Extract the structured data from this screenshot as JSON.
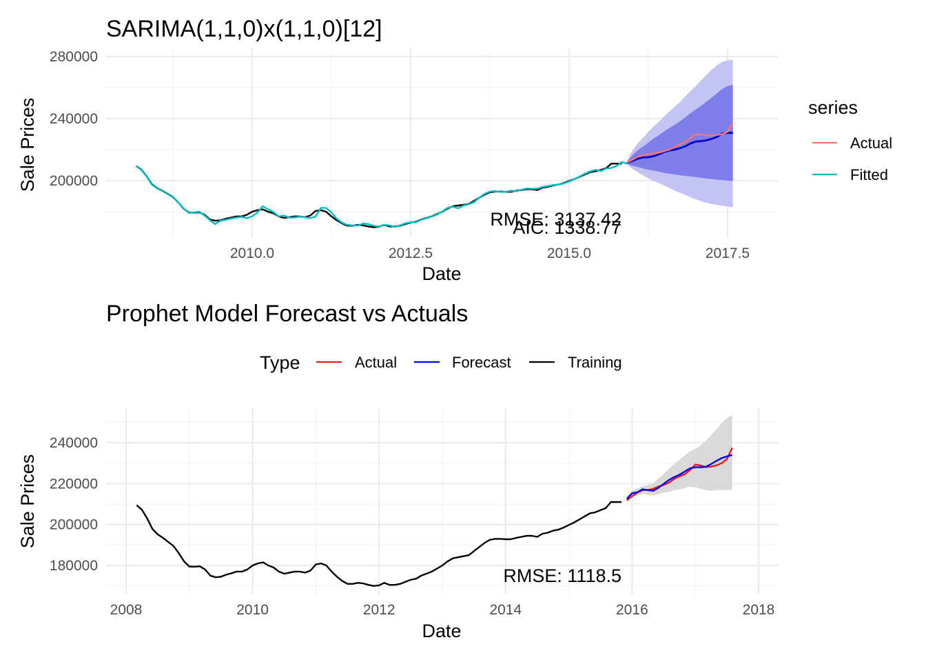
{
  "chart_data": [
    {
      "type": "line",
      "title": "SARIMA(1,1,0)x(1,1,0)[12]",
      "xlabel": "Date",
      "ylabel": "Sale Prices",
      "xlim": [
        2007.7,
        2018.3
      ],
      "ylim": [
        165500,
        282000
      ],
      "x_ticks": [
        2010.0,
        2012.5,
        2015.0,
        2017.5
      ],
      "x_tick_labels": [
        "2010.0",
        "2012.5",
        "2015.0",
        "2017.5"
      ],
      "y_ticks": [
        200000,
        240000,
        280000
      ],
      "y_tick_labels": [
        "200000",
        "240000",
        "280000"
      ],
      "grid": true,
      "legend": {
        "title": "series",
        "placement": "right",
        "entries": [
          {
            "label": "Actual",
            "color": "#F8766D"
          },
          {
            "label": "Fitted",
            "color": "#00BFC4"
          }
        ]
      },
      "annotations": [
        "RMSE: 3137.42",
        "AIC: 1338.77"
      ],
      "training_start": 2008.1667,
      "forecast_start": 2015.9167,
      "step": 0.08333,
      "series": [
        {
          "name": "Training",
          "color": "#000000",
          "values": [
            209500,
            207200,
            203000,
            197800,
            195200,
            193500,
            191500,
            189500,
            186000,
            182000,
            179500,
            179400,
            179600,
            178000,
            175000,
            174200,
            174500,
            175500,
            176200,
            177000,
            177000,
            178000,
            180000,
            181000,
            181500,
            180000,
            179000,
            177000,
            176000,
            176500,
            177000,
            177000,
            176500,
            177500,
            180500,
            181000,
            180000,
            177000,
            174500,
            172500,
            171000,
            171000,
            171500,
            171200,
            170500,
            170000,
            170300,
            171500,
            170500,
            170500,
            171000,
            172000,
            173000,
            173500,
            175000,
            176000,
            177000,
            178500,
            180000,
            182000,
            183500,
            184000,
            184500,
            185000,
            187000,
            189000,
            191000,
            192500,
            193000,
            193000,
            192800,
            192800,
            193500,
            194000,
            194500,
            194500,
            194000,
            195500,
            196000,
            197000,
            197500,
            198500,
            199800,
            201000,
            202500,
            204000,
            205500,
            206000,
            207000,
            208000,
            211000,
            211000,
            211000
          ]
        },
        {
          "name": "Fitted",
          "color": "#00BFC4",
          "values": [
            209500,
            207000,
            202800,
            197500,
            195000,
            193300,
            191300,
            189300,
            186000,
            182200,
            179200,
            179600,
            180000,
            177500,
            174500,
            172000,
            174200,
            174800,
            175600,
            176200,
            176600,
            175800,
            177000,
            179500,
            183500,
            181500,
            179800,
            177000,
            177500,
            176200,
            176200,
            176800,
            176400,
            175800,
            176800,
            182500,
            182400,
            179500,
            175500,
            173000,
            171500,
            171200,
            171000,
            172400,
            172000,
            171000,
            170500,
            171500,
            171200,
            170200,
            171200,
            172500,
            173200,
            173200,
            174800,
            175800,
            176800,
            178200,
            180200,
            182500,
            183200,
            182200,
            184000,
            184800,
            186200,
            189000,
            191500,
            193000,
            193300,
            192700,
            192800,
            193600,
            193200,
            194200,
            195000,
            194800,
            194900,
            196000,
            196500,
            197200,
            197500,
            198200,
            199500,
            201000,
            202700,
            204500,
            206000,
            207000,
            206200,
            207800,
            208200,
            209500,
            212000,
            211000
          ]
        },
        {
          "name": "Actual",
          "color": "#F8766D",
          "values": [
            211800,
            213500,
            215500,
            216500,
            217000,
            217500,
            218000,
            219000,
            220000,
            222000,
            223500,
            225000,
            227500,
            230000,
            229700,
            229200,
            229200,
            229400,
            230000,
            231500,
            237500
          ]
        },
        {
          "name": "Forecast",
          "color": "#0000CD",
          "values": [
            211500,
            212800,
            214200,
            215000,
            215100,
            215800,
            217000,
            218500,
            219400,
            220000,
            221000,
            222200,
            224000,
            225200,
            225500,
            226000,
            227000,
            228200,
            230500,
            230800,
            230800
          ]
        },
        {
          "name": "80% interval",
          "color": "#7F7FEC",
          "lower": [
            210800,
            209500,
            208800,
            207800,
            207000,
            206500,
            205800,
            205000,
            204500,
            204000,
            203500,
            203000,
            202700,
            202300,
            201800,
            201400,
            201000,
            200600,
            200300,
            200000,
            199800
          ],
          "upper": [
            212300,
            216500,
            219700,
            222000,
            224500,
            227300,
            229300,
            231800,
            234000,
            236000,
            238300,
            240900,
            243500,
            246000,
            248400,
            251000,
            253500,
            256300,
            259200,
            261000,
            261800
          ]
        },
        {
          "name": "95% interval",
          "color": "#C4C4F4",
          "lower": [
            210300,
            207500,
            205500,
            203500,
            201500,
            199800,
            198500,
            196800,
            195300,
            193600,
            192200,
            190800,
            189300,
            188000,
            186700,
            185700,
            185000,
            184300,
            183800,
            183300,
            183000
          ],
          "upper": [
            212800,
            219500,
            224200,
            227500,
            231400,
            235000,
            238000,
            241400,
            244600,
            247700,
            250800,
            254400,
            257800,
            261000,
            264700,
            268200,
            271500,
            274500,
            276500,
            277500,
            278000
          ]
        }
      ]
    },
    {
      "type": "line",
      "title": "Prophet Model Forecast vs Actuals",
      "xlabel": "Date",
      "ylabel": "Sale Prices",
      "xlim": [
        2007.6,
        2018.3
      ],
      "ylim": [
        165000,
        254000
      ],
      "x_ticks": [
        2008,
        2010,
        2012,
        2014,
        2016,
        2018
      ],
      "x_tick_labels": [
        "2008",
        "2010",
        "2012",
        "2014",
        "2016",
        "2018"
      ],
      "y_ticks": [
        180000,
        200000,
        220000,
        240000
      ],
      "y_tick_labels": [
        "180000",
        "200000",
        "220000",
        "240000"
      ],
      "grid": true,
      "legend": {
        "title": "Type",
        "placement": "top",
        "entries": [
          {
            "label": "Actual",
            "color": "#E41A1C"
          },
          {
            "label": "Forecast",
            "color": "#0000EE"
          },
          {
            "label": "Training",
            "color": "#000000"
          }
        ]
      },
      "annotations": [
        "RMSE: 1118.5"
      ],
      "training_start": 2008.1667,
      "forecast_start": 2015.9167,
      "step": 0.08333,
      "series": [
        {
          "name": "Training",
          "color": "#000000",
          "values": [
            209500,
            207200,
            203000,
            197800,
            195200,
            193500,
            191500,
            189500,
            186000,
            182000,
            179500,
            179400,
            179600,
            178000,
            175000,
            174200,
            174500,
            175500,
            176200,
            177000,
            177000,
            178000,
            180000,
            181000,
            181500,
            180000,
            179000,
            177000,
            176000,
            176500,
            177000,
            177000,
            176500,
            177500,
            180500,
            181000,
            180000,
            177000,
            174500,
            172500,
            171000,
            171000,
            171500,
            171200,
            170500,
            170000,
            170300,
            171500,
            170500,
            170500,
            171000,
            172000,
            173000,
            173500,
            175000,
            176000,
            177000,
            178500,
            180000,
            182000,
            183500,
            184000,
            184500,
            185000,
            187000,
            189000,
            191000,
            192500,
            193000,
            193000,
            192800,
            192800,
            193500,
            194000,
            194500,
            194500,
            194000,
            195500,
            196000,
            197000,
            197500,
            198500,
            199800,
            201000,
            202500,
            204000,
            205500,
            206000,
            207000,
            208000,
            211000,
            211000,
            211000
          ]
        },
        {
          "name": "Actual",
          "color": "#E41A1C",
          "values": [
            211800,
            213800,
            215600,
            216800,
            216900,
            217500,
            218600,
            219300,
            220500,
            222300,
            223600,
            224600,
            226600,
            229300,
            228900,
            228100,
            228300,
            228900,
            230000,
            232000,
            237500
          ]
        },
        {
          "name": "Forecast",
          "color": "#0000EE",
          "values": [
            212600,
            215300,
            215800,
            217200,
            216800,
            216500,
            218000,
            219900,
            221800,
            223200,
            224400,
            225900,
            227500,
            228000,
            228000,
            228200,
            229600,
            231100,
            232500,
            233300,
            234000
          ]
        },
        {
          "name": "Interval",
          "color": "#D9D9D9",
          "lower": [
            211500,
            213500,
            214200,
            214800,
            214600,
            214200,
            214900,
            215600,
            216000,
            216800,
            217200,
            217800,
            218500,
            218200,
            217500,
            216700,
            216500,
            216900,
            216800,
            216900,
            217000
          ],
          "upper": [
            213500,
            216700,
            217600,
            218800,
            219300,
            220200,
            222500,
            224800,
            227300,
            229700,
            231700,
            233800,
            235900,
            237000,
            238700,
            241000,
            243800,
            246500,
            249600,
            252000,
            253500
          ]
        }
      ]
    }
  ]
}
